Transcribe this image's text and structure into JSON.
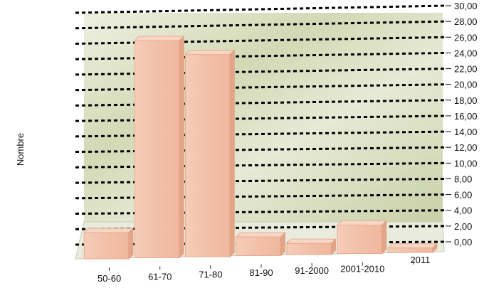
{
  "chart_data": {
    "type": "bar",
    "title": "",
    "xlabel": "",
    "ylabel": "Nombre",
    "categories": [
      "50-60",
      "61-70",
      "71-80",
      "81-90",
      "91-2000",
      "2001-2010",
      "2011"
    ],
    "values": [
      3.5,
      29,
      27,
      2.5,
      1.5,
      3.8,
      0.6
    ],
    "ylim": [
      0,
      30
    ],
    "y_ticks": [
      "0,00",
      "2,00",
      "4,00",
      "6,00",
      "8,00",
      "10,00",
      "12,00",
      "14,00",
      "16,00",
      "18,00",
      "20,00",
      "22,00",
      "24,00",
      "26,00",
      "28,00",
      "30,00"
    ],
    "grid": true,
    "grid_style": "dotted",
    "y_axis_side": "right",
    "legend": "none",
    "colors": {
      "bar_front": "#f2c0a8",
      "bar_top": "#f7d6c6",
      "bar_side": "#e4a488",
      "background": "#d6dcc0",
      "grid": "#000000"
    }
  }
}
